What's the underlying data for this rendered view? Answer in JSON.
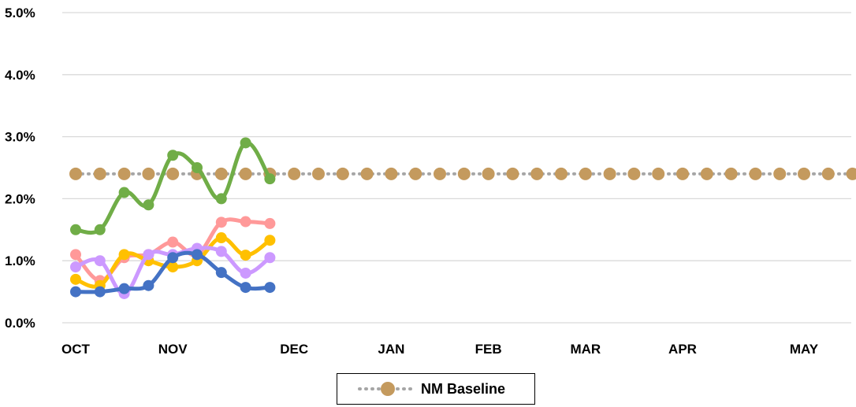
{
  "chart_data": {
    "type": "line",
    "ylim": [
      0,
      5
    ],
    "y_ticks": [
      "0.0%",
      "1.0%",
      "2.0%",
      "3.0%",
      "4.0%",
      "5.0%"
    ],
    "x_month_labels": [
      "OCT",
      "NOV",
      "DEC",
      "JAN",
      "FEB",
      "MAR",
      "APR",
      "MAY"
    ],
    "x_count": 33,
    "grid": true,
    "legend_position": "bottom",
    "series": [
      {
        "name": "NM Baseline",
        "color": "#C49A5E",
        "style": "dotted",
        "values": [
          2.4,
          2.4,
          2.4,
          2.4,
          2.4,
          2.4,
          2.4,
          2.4,
          2.4,
          2.4,
          2.4,
          2.4,
          2.4,
          2.4,
          2.4,
          2.4,
          2.4,
          2.4,
          2.4,
          2.4,
          2.4,
          2.4,
          2.4,
          2.4,
          2.4,
          2.4,
          2.4,
          2.4,
          2.4,
          2.4,
          2.4,
          2.4,
          2.4
        ]
      },
      {
        "color": "#70AD47",
        "values": [
          1.5,
          1.5,
          2.1,
          1.9,
          2.7,
          2.5,
          2.0,
          2.9,
          2.32
        ]
      },
      {
        "color": "#FF9999",
        "values": [
          1.1,
          0.68,
          1.05,
          1.1,
          1.3,
          1.1,
          1.62,
          1.63,
          1.6
        ]
      },
      {
        "color": "#FFC000",
        "values": [
          0.7,
          0.6,
          1.1,
          1.0,
          0.9,
          1.0,
          1.37,
          1.09,
          1.33
        ]
      },
      {
        "color": "#CC99FF",
        "values": [
          0.9,
          1.0,
          0.47,
          1.1,
          1.1,
          1.2,
          1.15,
          0.8,
          1.05
        ]
      },
      {
        "color": "#4472C4",
        "values": [
          0.5,
          0.5,
          0.55,
          0.6,
          1.05,
          1.1,
          0.81,
          0.57,
          0.57
        ]
      }
    ]
  }
}
